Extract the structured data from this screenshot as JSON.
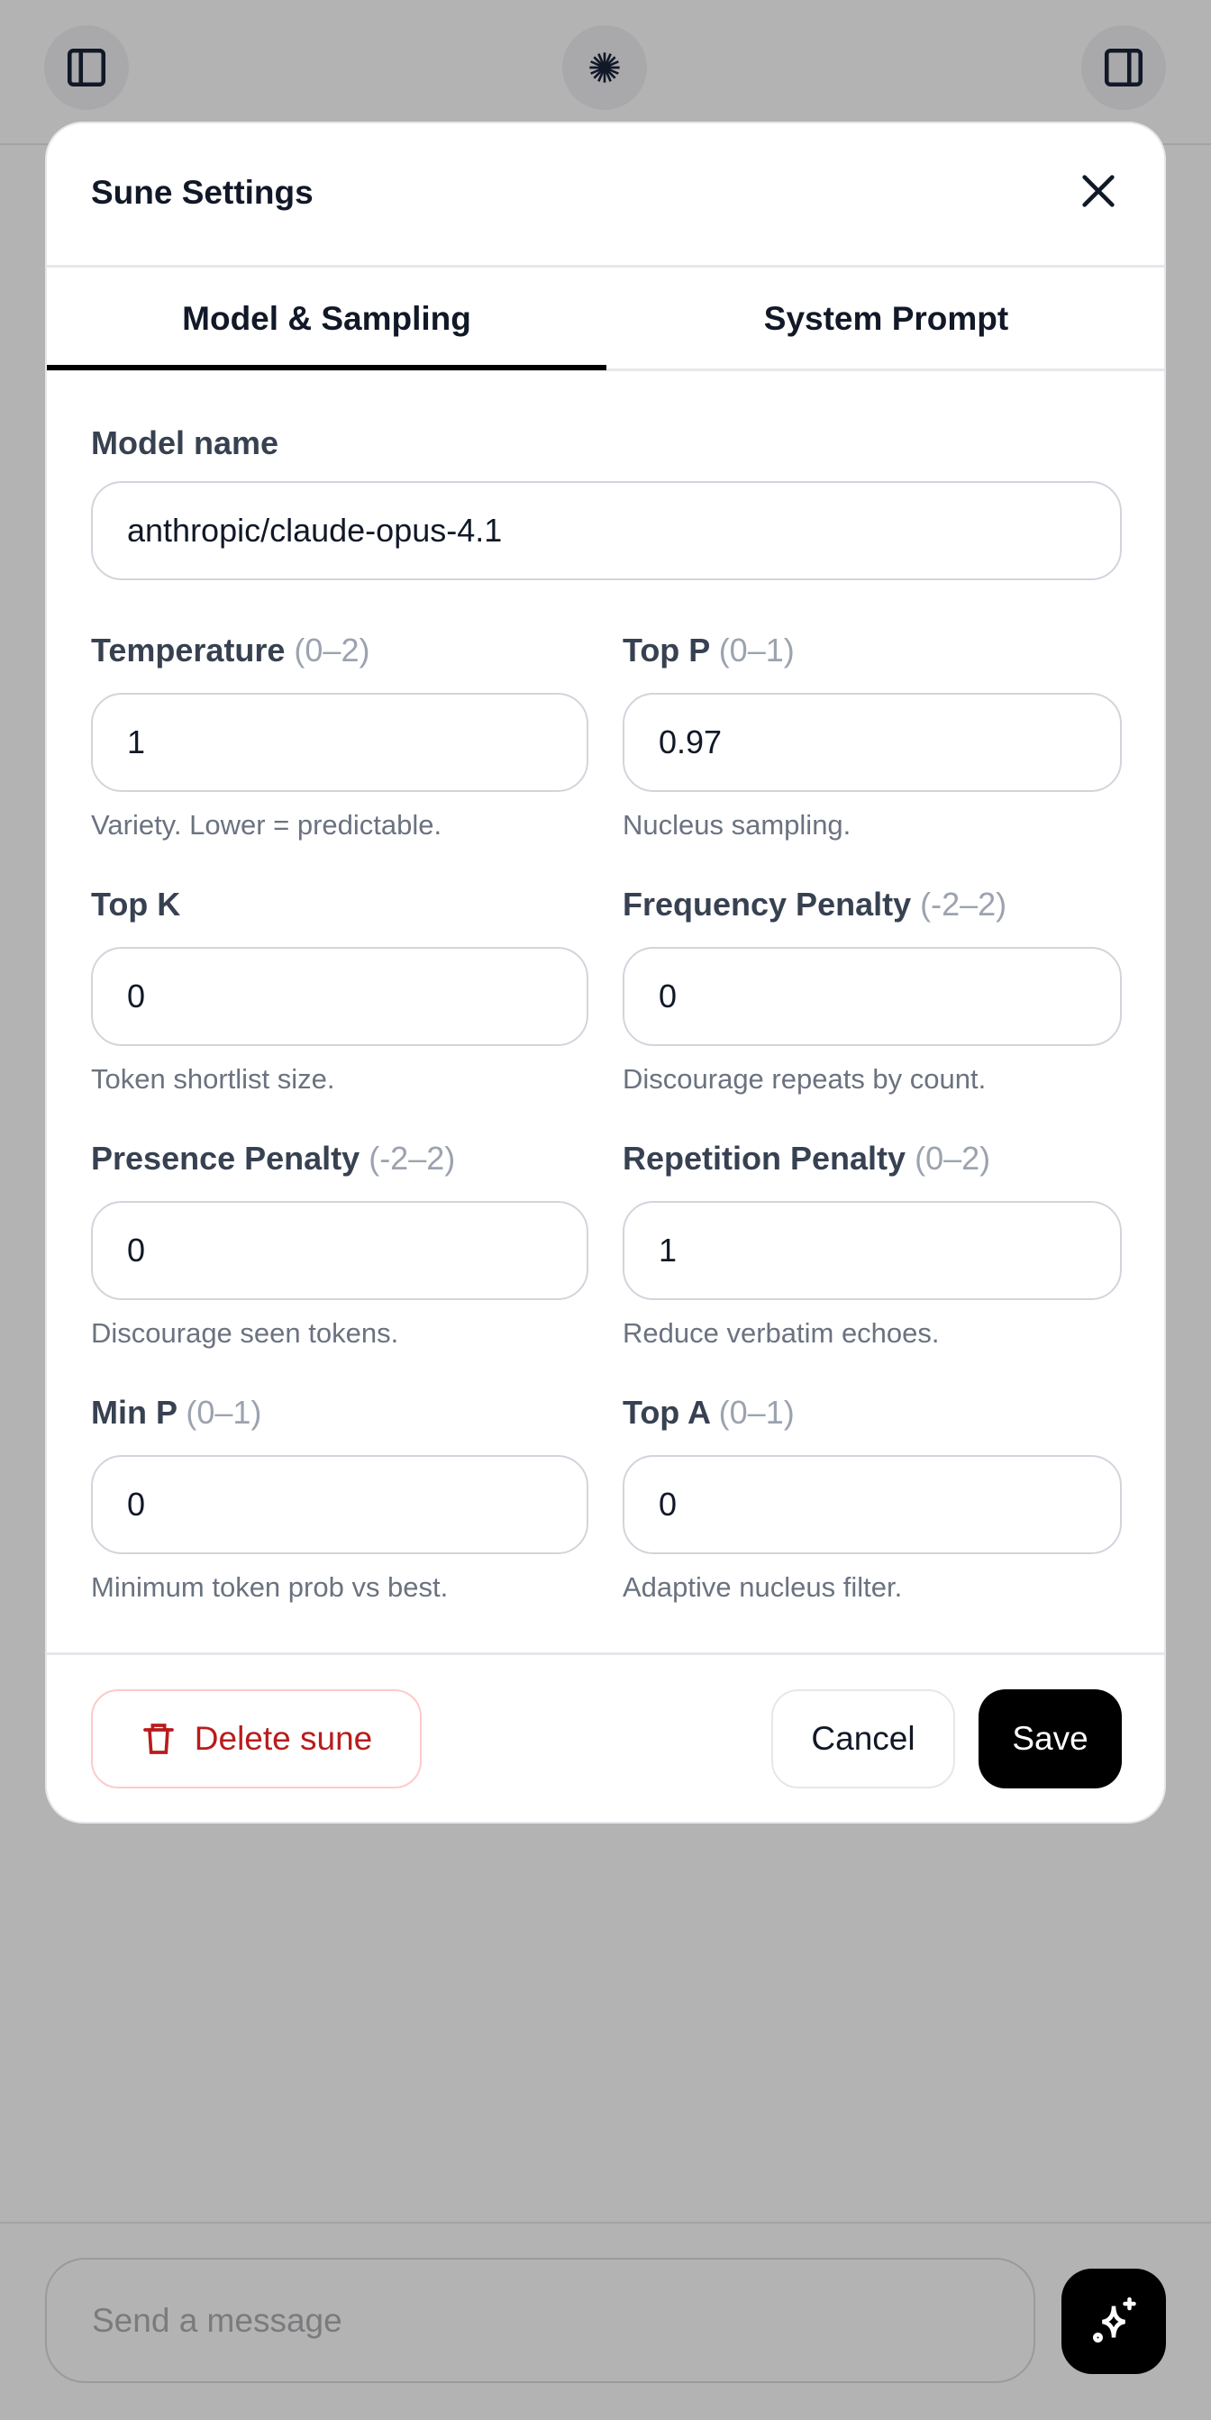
{
  "topbar": {
    "left_icon": "sidebar-left-icon",
    "center_icon": "starburst-logo-icon",
    "right_icon": "sidebar-right-icon"
  },
  "modal": {
    "title": "Sune Settings",
    "close_icon": "close-icon",
    "tabs": [
      {
        "label": "Model & Sampling",
        "active": true
      },
      {
        "label": "System Prompt",
        "active": false
      }
    ],
    "model_name": {
      "label": "Model name",
      "value": "anthropic/claude-opus-4.1"
    },
    "fields": [
      {
        "label": "Temperature",
        "range": "(0–2)",
        "value": "1",
        "hint": "Variety. Lower = predictable."
      },
      {
        "label": "Top P",
        "range": "(0–1)",
        "value": "0.97",
        "hint": "Nucleus sampling."
      },
      {
        "label": "Top K",
        "range": "",
        "value": "0",
        "hint": "Token shortlist size."
      },
      {
        "label": "Frequency Penalty",
        "range": "(-2–2)",
        "value": "0",
        "hint": "Discourage repeats by count."
      },
      {
        "label": "Presence Penalty",
        "range": "(-2–2)",
        "value": "0",
        "hint": "Discourage seen tokens."
      },
      {
        "label": "Repetition Penalty",
        "range": "(0–2)",
        "value": "1",
        "hint": "Reduce verbatim echoes."
      },
      {
        "label": "Min P",
        "range": "(0–1)",
        "value": "0",
        "hint": "Minimum token prob vs best."
      },
      {
        "label": "Top A",
        "range": "(0–1)",
        "value": "0",
        "hint": "Adaptive nucleus filter."
      }
    ],
    "footer": {
      "delete_label": "Delete sune",
      "cancel_label": "Cancel",
      "save_label": "Save"
    },
    "colors": {
      "danger": "#b91c1c",
      "danger_border": "#fecaca",
      "primary": "#000000"
    }
  },
  "composer": {
    "placeholder": "Send a message",
    "send_icon": "sparkles-icon"
  }
}
